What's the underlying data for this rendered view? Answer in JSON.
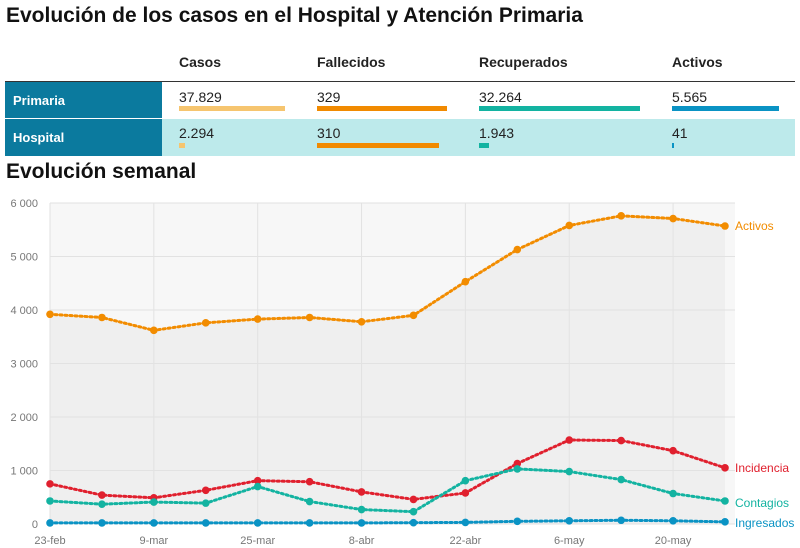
{
  "title": "Evolución de los casos en el Hospital y Atención Primaria",
  "table": {
    "columns": [
      "Casos",
      "Fallecidos",
      "Recuperados",
      "Activos"
    ],
    "column_colors": [
      "#f6c56f",
      "#f18a00",
      "#13b3a1",
      "#0a93c4"
    ],
    "rows": [
      {
        "label": "Primaria",
        "values": [
          "37.829",
          "329",
          "32.264",
          "5.565"
        ],
        "fractions": [
          1.0,
          1.0,
          1.0,
          1.0
        ]
      },
      {
        "label": "Hospital",
        "values": [
          "2.294",
          "310",
          "1.943",
          "41"
        ],
        "fractions": [
          0.06,
          0.94,
          0.06,
          0.01
        ]
      }
    ]
  },
  "section_title": "Evolución semanal",
  "chart_data": {
    "type": "line",
    "x": [
      "23-feb",
      "2-mar",
      "9-mar",
      "16-mar",
      "25-mar",
      "1-abr",
      "8-abr",
      "15-abr",
      "22-abr",
      "29-abr",
      "6-may",
      "13-may",
      "20-may",
      "27-may"
    ],
    "x_tick_labels": [
      "23-feb",
      "9-mar",
      "25-mar",
      "8-abr",
      "22-abr",
      "6-may",
      "20-may"
    ],
    "y_ticks": [
      "0",
      "1 000",
      "2 000",
      "3 000",
      "4 000",
      "5 000",
      "6 000"
    ],
    "ylim": [
      0,
      6000
    ],
    "grid": true,
    "series": [
      {
        "name": "Activos",
        "color": "#f28c00",
        "values": [
          3920,
          3860,
          3620,
          3760,
          3830,
          3860,
          3780,
          3900,
          4530,
          5130,
          5580,
          5760,
          5710,
          5570
        ]
      },
      {
        "name": "Incidencia",
        "color": "#e0202e",
        "values": [
          750,
          540,
          490,
          630,
          810,
          790,
          600,
          460,
          580,
          1130,
          1570,
          1560,
          1370,
          1050
        ]
      },
      {
        "name": "Contagios",
        "color": "#13b3a1",
        "values": [
          430,
          370,
          410,
          390,
          700,
          420,
          270,
          230,
          810,
          1030,
          980,
          830,
          570,
          430
        ]
      },
      {
        "name": "Ingresados",
        "color": "#0a93c4",
        "values": [
          20,
          20,
          20,
          20,
          20,
          20,
          20,
          25,
          30,
          50,
          60,
          70,
          60,
          40
        ]
      }
    ]
  }
}
